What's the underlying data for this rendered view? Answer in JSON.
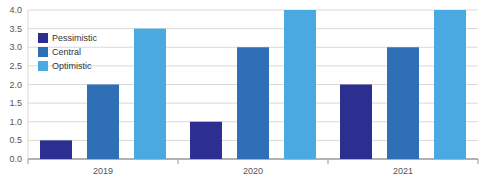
{
  "chart_data": {
    "type": "bar",
    "categories": [
      "2019",
      "2020",
      "2021"
    ],
    "series": [
      {
        "name": "Pessimistic",
        "color": "#2c2f8f",
        "values": [
          0.5,
          1,
          2
        ]
      },
      {
        "name": "Central",
        "color": "#2f6fb5",
        "values": [
          2,
          3,
          3
        ]
      },
      {
        "name": "Optimistic",
        "color": "#4ba9e1",
        "values": [
          3.5,
          4,
          4
        ]
      }
    ],
    "ylim": [
      0,
      4
    ],
    "yticks": [
      {
        "value": 0,
        "label": "0.0"
      },
      0.5,
      {
        "value": 1,
        "label": "1.0"
      },
      1.5,
      {
        "value": 2,
        "label": "2.0"
      },
      2.5,
      {
        "value": 3,
        "label": "3.0"
      },
      3.5,
      {
        "value": 4,
        "label": "4.0"
      }
    ],
    "grid": true,
    "legend": "upper left"
  }
}
